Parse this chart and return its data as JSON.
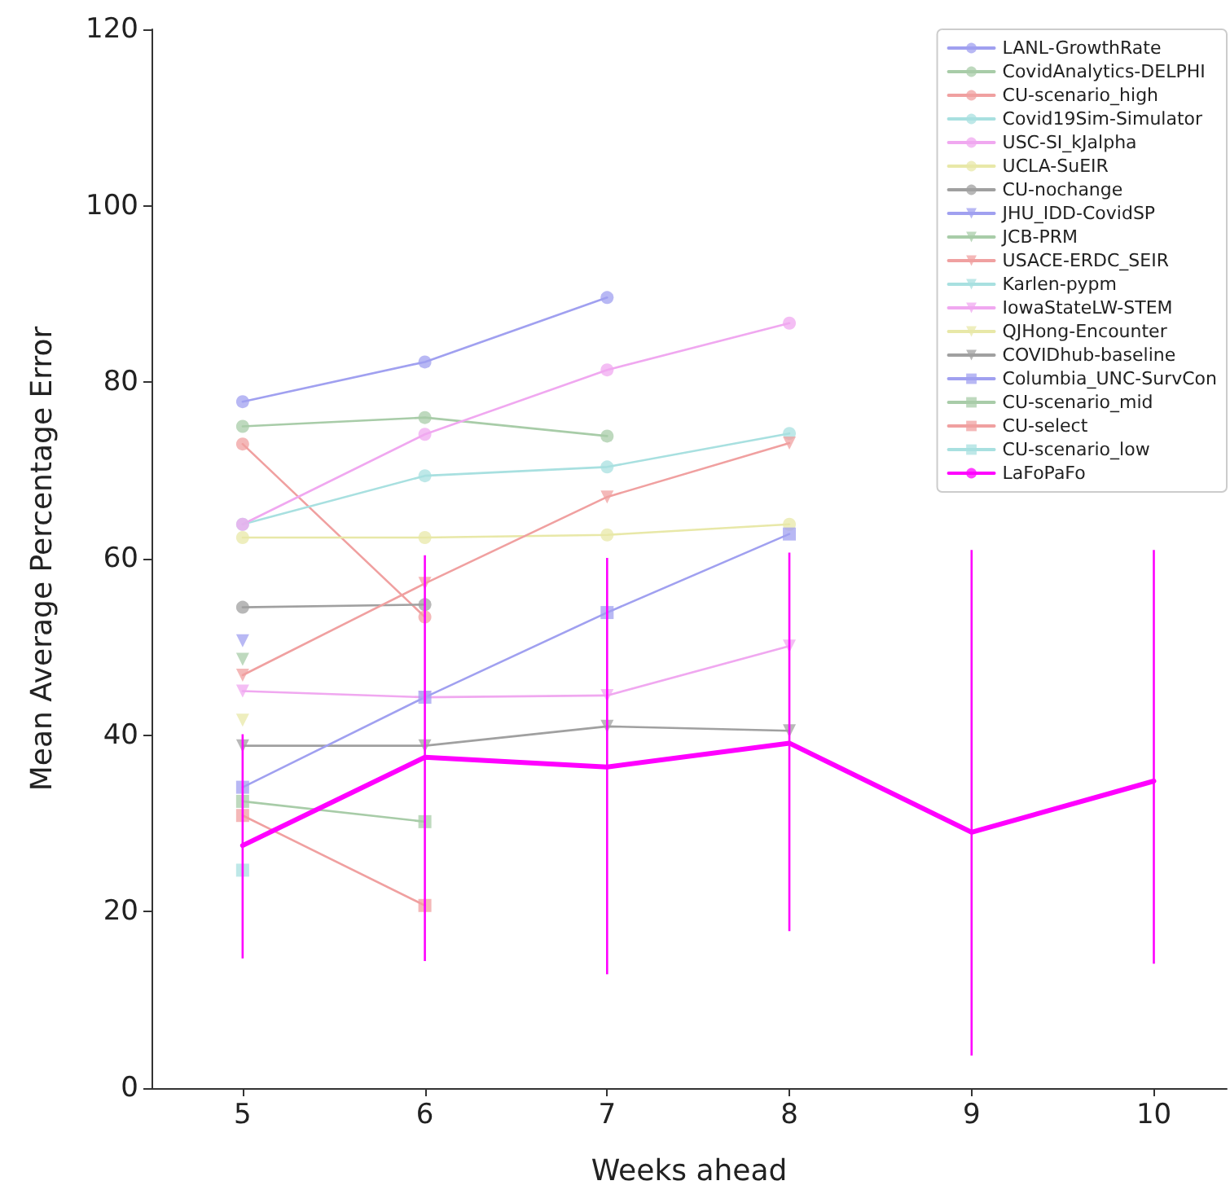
{
  "chart_data": {
    "type": "line",
    "xlabel": "Weeks ahead",
    "ylabel": "Mean Average Percentage Error",
    "x": [
      5,
      6,
      7,
      8,
      9,
      10
    ],
    "xlim": [
      4.5,
      10.4
    ],
    "xticks": [
      5,
      6,
      7,
      8,
      9,
      10
    ],
    "ylim": [
      0,
      120
    ],
    "yticks": [
      0,
      20,
      40,
      60,
      80,
      100,
      120
    ],
    "grid": false,
    "legend": "top right",
    "line_style": "solid",
    "series": [
      {
        "name": "LANL-GrowthRate",
        "color": "#a0a0f0",
        "marker": "circle",
        "values": [
          77.8,
          82.3,
          89.6,
          null,
          null,
          null
        ]
      },
      {
        "name": "CovidAnalytics-DELPHI",
        "color": "#a8cca8",
        "marker": "circle",
        "values": [
          75.0,
          76.0,
          73.9,
          null,
          null,
          null
        ]
      },
      {
        "name": "CU-scenario_high",
        "color": "#f0a0a0",
        "marker": "circle",
        "values": [
          73.0,
          53.4,
          null,
          null,
          null,
          null
        ]
      },
      {
        "name": "Covid19Sim-Simulator",
        "color": "#a8e0e0",
        "marker": "circle",
        "values": [
          63.9,
          69.4,
          70.4,
          74.2,
          null,
          null
        ]
      },
      {
        "name": "USC-SI_kJalpha",
        "color": "#f0a8f0",
        "marker": "circle",
        "values": [
          63.9,
          74.1,
          81.4,
          86.7,
          null,
          null
        ]
      },
      {
        "name": "UCLA-SuEIR",
        "color": "#e8e8a8",
        "marker": "circle",
        "values": [
          62.4,
          62.4,
          62.7,
          63.9,
          null,
          null
        ]
      },
      {
        "name": "CU-nochange",
        "color": "#a0a0a0",
        "marker": "circle",
        "values": [
          54.5,
          54.8,
          null,
          null,
          null,
          null
        ]
      },
      {
        "name": "JHU_IDD-CovidSP",
        "color": "#a0a0f0",
        "marker": "triangle",
        "values": [
          50.7,
          null,
          null,
          null,
          null,
          null
        ]
      },
      {
        "name": "JCB-PRM",
        "color": "#a8cca8",
        "marker": "triangle",
        "values": [
          48.6,
          null,
          null,
          null,
          null,
          null
        ]
      },
      {
        "name": "USACE-ERDC_SEIR",
        "color": "#f0a0a0",
        "marker": "triangle",
        "values": [
          46.8,
          57.2,
          67.0,
          73.1,
          null,
          null
        ]
      },
      {
        "name": "Karlen-pypm",
        "color": "#a8e0e0",
        "marker": "triangle",
        "values": [
          null,
          null,
          null,
          null,
          null,
          null
        ]
      },
      {
        "name": "IowaStateLW-STEM",
        "color": "#f0a8f0",
        "marker": "triangle",
        "values": [
          45.0,
          44.3,
          44.5,
          50.1,
          null,
          null
        ]
      },
      {
        "name": "QJHong-Encounter",
        "color": "#e8e8a8",
        "marker": "triangle",
        "values": [
          41.7,
          null,
          null,
          null,
          null,
          null
        ]
      },
      {
        "name": "COVIDhub-baseline",
        "color": "#a0a0a0",
        "marker": "triangle",
        "values": [
          38.8,
          38.8,
          41.0,
          40.5,
          null,
          null
        ]
      },
      {
        "name": "Columbia_UNC-SurvCon",
        "color": "#a0a0f0",
        "marker": "square",
        "values": [
          34.1,
          44.3,
          53.9,
          62.8,
          null,
          null
        ]
      },
      {
        "name": "CU-scenario_mid",
        "color": "#a8cca8",
        "marker": "square",
        "values": [
          32.5,
          30.2,
          null,
          null,
          null,
          null
        ]
      },
      {
        "name": "CU-select",
        "color": "#f0a0a0",
        "marker": "square",
        "values": [
          30.9,
          20.7,
          null,
          null,
          null,
          null
        ]
      },
      {
        "name": "CU-scenario_low",
        "color": "#a8e0e0",
        "marker": "square",
        "values": [
          24.7,
          null,
          null,
          null,
          null,
          null
        ]
      },
      {
        "name": "LaFoPaFo",
        "color": "#ff00ff",
        "marker": "none",
        "values": [
          27.5,
          37.5,
          36.4,
          39.1,
          29.0,
          34.8
        ],
        "errors": [
          [
            14.7,
            40.1
          ],
          [
            14.4,
            60.4
          ],
          [
            12.9,
            60.1
          ],
          [
            17.8,
            60.7
          ],
          [
            3.7,
            61
          ],
          [
            14.1,
            61
          ]
        ]
      }
    ]
  }
}
